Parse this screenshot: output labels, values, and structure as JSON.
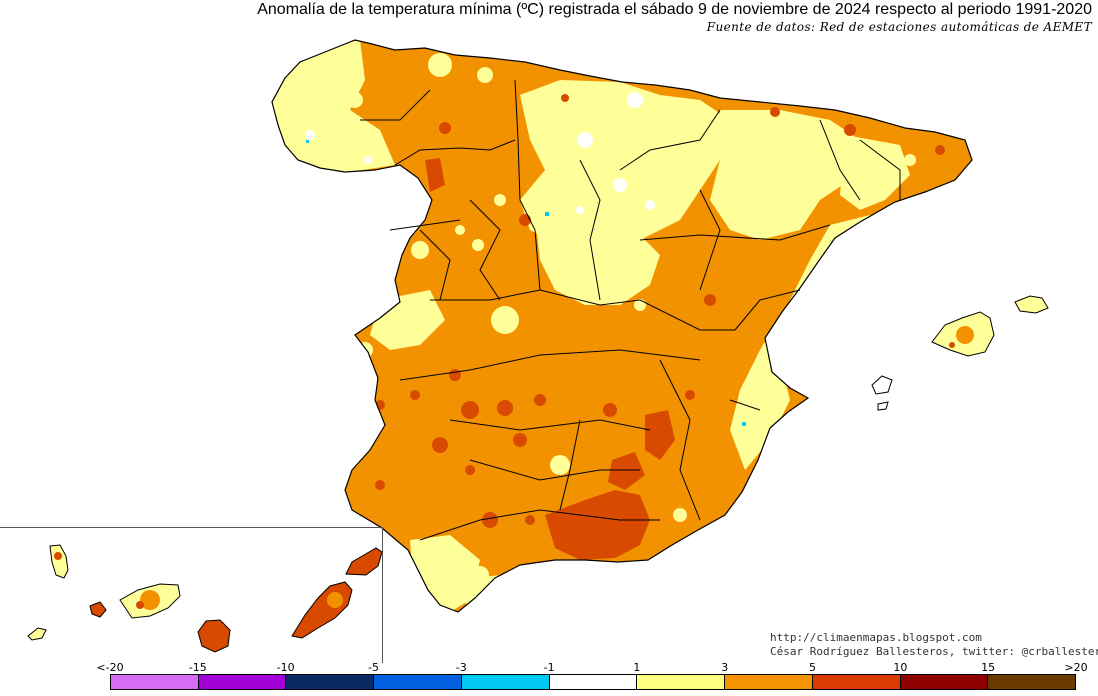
{
  "title": "Anomalía de la temperatura mínima (ºC) registrada el sábado 9 de noviembre de 2024 respecto al periodo 1991-2020",
  "source": "Fuente de datos: Red de estaciones automáticas de AEMET",
  "credits": {
    "url": "http://climaenmapas.blogspot.com",
    "author": "César Rodríguez Ballesteros, twitter: @crballesteros"
  },
  "legend": {
    "ticks": [
      "<-20",
      "-15",
      "-10",
      "-5",
      "-3",
      "-1",
      "1",
      "3",
      "5",
      "10",
      "15",
      ">20"
    ],
    "colors": [
      "#d66cf2",
      "#a400d8",
      "#0a2a66",
      "#0060e0",
      "#00c8f0",
      "#ffffff",
      "#ffff80",
      "#f59300",
      "#d83c00",
      "#8c0000",
      "#6b3a00"
    ]
  },
  "palette": {
    "ocean": "#ffffff",
    "coast": "#000000",
    "pale_yellow": "#ffff99",
    "orange": "#f39200",
    "red_orange": "#d84a00",
    "white_spot": "#ffffff",
    "cyan_spot": "#00c8f0"
  }
}
